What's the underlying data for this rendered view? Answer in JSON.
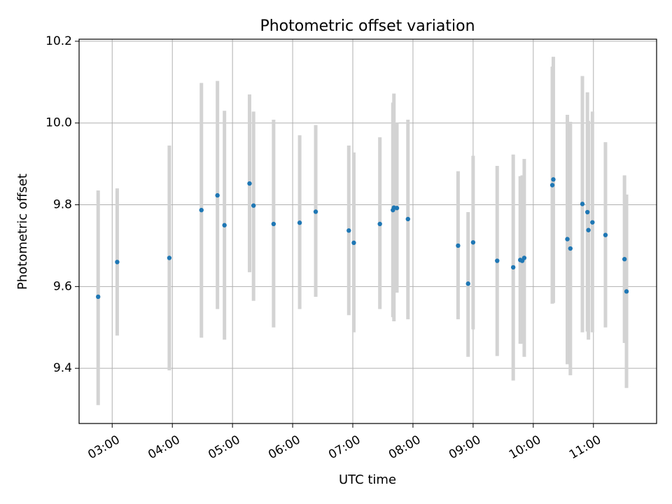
{
  "chart_data": {
    "type": "scatter",
    "title": "Photometric offset variation",
    "xlabel": "UTC time",
    "ylabel": "Photometric offset",
    "xlim": [
      "02:27",
      "12:03"
    ],
    "ylim": [
      9.265,
      10.205
    ],
    "x_ticks": [
      "03:00",
      "04:00",
      "05:00",
      "06:00",
      "07:00",
      "08:00",
      "09:00",
      "10:00",
      "11:00"
    ],
    "y_ticks": [
      "9.4",
      "9.6",
      "9.8",
      "10.0",
      "10.2"
    ],
    "grid": true,
    "colors": {
      "points": "#1f77b4",
      "error_bars": "#d3d3d3",
      "grid": "#b0b0b0"
    },
    "points": [
      {
        "x": "02:46",
        "y": 9.575,
        "err_low": 9.31,
        "err_high": 9.835
      },
      {
        "x": "03:05",
        "y": 9.66,
        "err_low": 9.48,
        "err_high": 9.84
      },
      {
        "x": "03:57",
        "y": 9.67,
        "err_low": 9.395,
        "err_high": 9.945
      },
      {
        "x": "04:29",
        "y": 9.787,
        "err_low": 9.475,
        "err_high": 10.098
      },
      {
        "x": "04:45",
        "y": 9.823,
        "err_low": 9.545,
        "err_high": 10.103
      },
      {
        "x": "04:52",
        "y": 9.75,
        "err_low": 9.47,
        "err_high": 10.03
      },
      {
        "x": "05:17",
        "y": 9.852,
        "err_low": 9.635,
        "err_high": 10.07
      },
      {
        "x": "05:21",
        "y": 9.798,
        "err_low": 9.565,
        "err_high": 10.028
      },
      {
        "x": "05:41",
        "y": 9.753,
        "err_low": 9.5,
        "err_high": 10.008
      },
      {
        "x": "06:07",
        "y": 9.756,
        "err_low": 9.545,
        "err_high": 9.97
      },
      {
        "x": "06:23",
        "y": 9.783,
        "err_low": 9.575,
        "err_high": 9.995
      },
      {
        "x": "06:56",
        "y": 9.737,
        "err_low": 9.53,
        "err_high": 9.945
      },
      {
        "x": "07:01",
        "y": 9.707,
        "err_low": 9.488,
        "err_high": 9.928
      },
      {
        "x": "07:27",
        "y": 9.753,
        "err_low": 9.545,
        "err_high": 9.965
      },
      {
        "x": "07:40",
        "y": 9.787,
        "err_low": 9.525,
        "err_high": 10.05
      },
      {
        "x": "07:41",
        "y": 9.793,
        "err_low": 9.515,
        "err_high": 10.072
      },
      {
        "x": "07:44",
        "y": 9.792,
        "err_low": 9.585,
        "err_high": 10.0
      },
      {
        "x": "07:55",
        "y": 9.765,
        "err_low": 9.52,
        "err_high": 10.008
      },
      {
        "x": "08:45",
        "y": 9.7,
        "err_low": 9.52,
        "err_high": 9.882
      },
      {
        "x": "08:55",
        "y": 9.607,
        "err_low": 9.428,
        "err_high": 9.782
      },
      {
        "x": "09:00",
        "y": 9.708,
        "err_low": 9.495,
        "err_high": 9.92
      },
      {
        "x": "09:24",
        "y": 9.663,
        "err_low": 9.43,
        "err_high": 9.895
      },
      {
        "x": "09:40",
        "y": 9.647,
        "err_low": 9.37,
        "err_high": 9.923
      },
      {
        "x": "09:47",
        "y": 9.665,
        "err_low": 9.46,
        "err_high": 9.87
      },
      {
        "x": "09:49",
        "y": 9.663,
        "err_low": 9.46,
        "err_high": 9.872
      },
      {
        "x": "09:51",
        "y": 9.67,
        "err_low": 9.428,
        "err_high": 9.912
      },
      {
        "x": "10:19",
        "y": 9.848,
        "err_low": 9.558,
        "err_high": 10.138
      },
      {
        "x": "10:20",
        "y": 9.862,
        "err_low": 9.56,
        "err_high": 10.162
      },
      {
        "x": "10:34",
        "y": 9.716,
        "err_low": 9.41,
        "err_high": 10.02
      },
      {
        "x": "10:37",
        "y": 9.693,
        "err_low": 9.383,
        "err_high": 10.003
      },
      {
        "x": "10:49",
        "y": 9.802,
        "err_low": 9.488,
        "err_high": 10.115
      },
      {
        "x": "10:54",
        "y": 9.782,
        "err_low": 9.49,
        "err_high": 10.075
      },
      {
        "x": "10:55",
        "y": 9.738,
        "err_low": 9.47,
        "err_high": 10.005
      },
      {
        "x": "10:59",
        "y": 9.757,
        "err_low": 9.488,
        "err_high": 10.028
      },
      {
        "x": "11:12",
        "y": 9.726,
        "err_low": 9.5,
        "err_high": 9.953
      },
      {
        "x": "11:31",
        "y": 9.667,
        "err_low": 9.462,
        "err_high": 9.872
      },
      {
        "x": "11:33",
        "y": 9.588,
        "err_low": 9.352,
        "err_high": 9.825
      }
    ]
  }
}
